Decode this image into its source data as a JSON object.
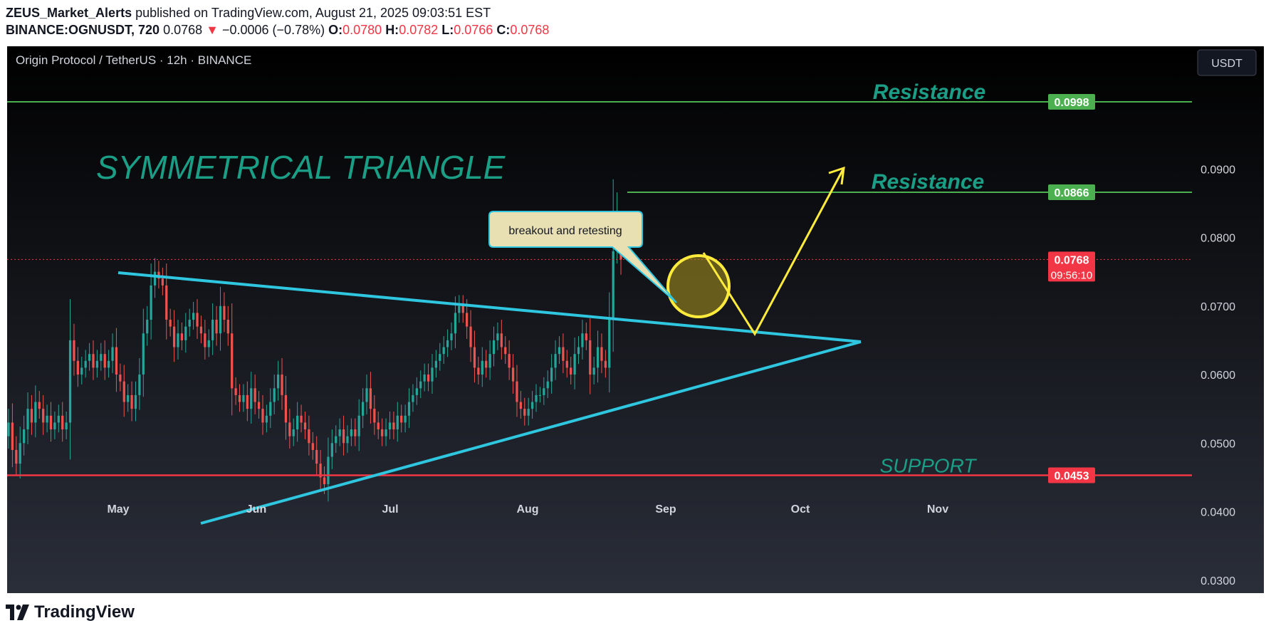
{
  "header": {
    "author": "ZEUS_Market_Alerts",
    "published_text": " published on TradingView.com, August 21, 2025 09:03:51 EST",
    "symbol": "BINANCE:OGNUSDT, 720",
    "last": "0.0768",
    "change_arrow": "▼",
    "change": "−0.0006 (−0.78%)",
    "o_label": "O:",
    "o_value": "0.0780",
    "h_label": "H:",
    "h_value": "0.0782",
    "l_label": "L:",
    "l_value": "0.0766",
    "c_label": "C:",
    "c_value": "0.0768"
  },
  "chart_data": {
    "type": "candlestick",
    "title": "Origin Protocol / TetherUS · 12h · BINANCE",
    "currency_button": "USDT",
    "x_tick_labels": [
      "May",
      "Jun",
      "Jul",
      "Aug",
      "Sep",
      "Oct",
      "Nov"
    ],
    "y_tick_labels": [
      "0.0900",
      "0.0800",
      "0.0700",
      "0.0600",
      "0.0500",
      "0.0400",
      "0.0300"
    ],
    "y_ticks": [
      0.09,
      0.08,
      0.07,
      0.06,
      0.05,
      0.04,
      0.03
    ],
    "ylim": [
      0.0279,
      0.1079
    ],
    "grid": false,
    "approx_close_series": [
      0.053,
      0.049,
      0.047,
      0.05,
      0.052,
      0.055,
      0.053,
      0.056,
      0.055,
      0.053,
      0.054,
      0.052,
      0.053,
      0.054,
      0.052,
      0.053,
      0.065,
      0.062,
      0.06,
      0.061,
      0.062,
      0.063,
      0.061,
      0.062,
      0.063,
      0.061,
      0.062,
      0.064,
      0.06,
      0.059,
      0.056,
      0.057,
      0.055,
      0.057,
      0.06,
      0.066,
      0.068,
      0.073,
      0.075,
      0.074,
      0.073,
      0.068,
      0.067,
      0.064,
      0.066,
      0.065,
      0.067,
      0.068,
      0.069,
      0.067,
      0.066,
      0.064,
      0.065,
      0.068,
      0.066,
      0.07,
      0.068,
      0.066,
      0.058,
      0.057,
      0.056,
      0.057,
      0.055,
      0.058,
      0.056,
      0.055,
      0.053,
      0.054,
      0.056,
      0.058,
      0.06,
      0.057,
      0.053,
      0.051,
      0.052,
      0.054,
      0.053,
      0.052,
      0.05,
      0.049,
      0.047,
      0.045,
      0.044,
      0.048,
      0.05,
      0.051,
      0.052,
      0.05,
      0.051,
      0.052,
      0.051,
      0.054,
      0.056,
      0.058,
      0.055,
      0.053,
      0.052,
      0.051,
      0.052,
      0.053,
      0.052,
      0.054,
      0.053,
      0.054,
      0.056,
      0.057,
      0.058,
      0.059,
      0.06,
      0.059,
      0.061,
      0.062,
      0.063,
      0.064,
      0.065,
      0.066,
      0.069,
      0.07,
      0.069,
      0.067,
      0.064,
      0.061,
      0.06,
      0.062,
      0.061,
      0.063,
      0.065,
      0.066,
      0.064,
      0.063,
      0.061,
      0.059,
      0.056,
      0.055,
      0.054,
      0.055,
      0.056,
      0.057,
      0.057,
      0.058,
      0.059,
      0.061,
      0.063,
      0.064,
      0.062,
      0.061,
      0.06,
      0.063,
      0.064,
      0.066,
      0.065,
      0.06,
      0.061,
      0.064,
      0.062,
      0.061,
      0.068,
      0.078,
      0.08,
      0.0768
    ],
    "price_labels": [
      {
        "text": "0.0998",
        "value": 0.0998,
        "color": "#4caf50"
      },
      {
        "text": "0.0866",
        "value": 0.0866,
        "color": "#4caf50"
      },
      {
        "text": "0.0768",
        "value": 0.0768,
        "color": "#f23645"
      },
      {
        "text": "0.0453",
        "value": 0.0453,
        "color": "#f23645"
      }
    ],
    "countdown": "09:56:10",
    "horizontal_levels": [
      {
        "label": "Resistance",
        "value": 0.0998,
        "color": "#4caf50"
      },
      {
        "label": "Resistance",
        "value": 0.0866,
        "color": "#4caf50"
      },
      {
        "label": "SUPPORT",
        "value": 0.0453,
        "color": "#f23645"
      }
    ],
    "pattern_title": "SYMMETRICAL TRIANGLE",
    "callout": "breakout and retesting",
    "colors": {
      "up": "#26a69a",
      "down": "#ef5350",
      "background_top": "#000000",
      "background_bottom": "#2a2e39",
      "triangle": "#2fc6e0",
      "projection": "#ffeb3b",
      "annotation_text": "#1b9e86"
    }
  },
  "footer": {
    "brand": "TradingView"
  }
}
